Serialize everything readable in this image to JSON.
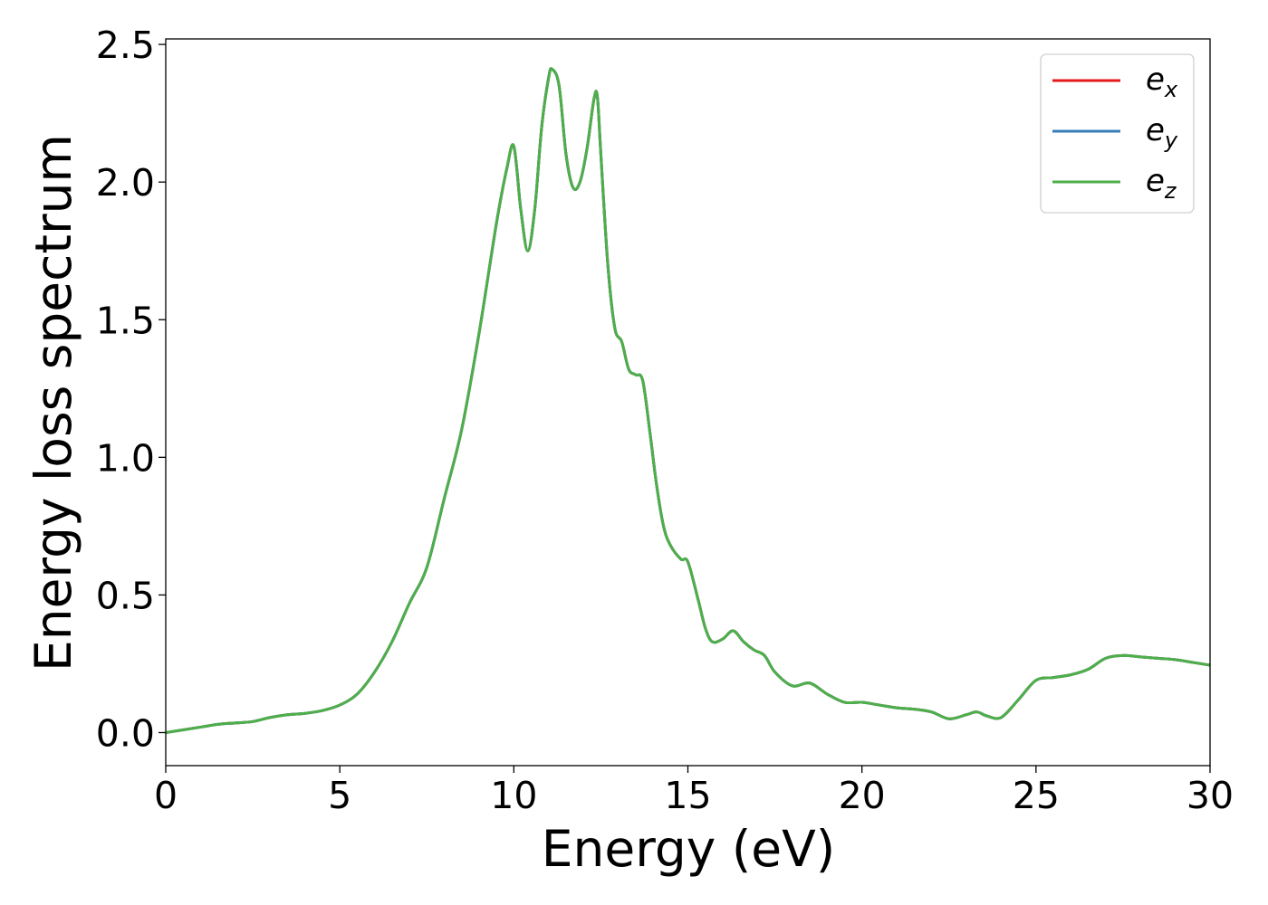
{
  "chart_data": {
    "type": "line",
    "xlabel": "Energy (eV)",
    "ylabel": "Energy loss spectrum",
    "xlim": [
      0,
      30
    ],
    "ylim": [
      -0.12,
      2.52
    ],
    "xticks": [
      0,
      5,
      10,
      15,
      20,
      25,
      30
    ],
    "xtick_labels": [
      "0",
      "5",
      "10",
      "15",
      "20",
      "25",
      "30"
    ],
    "yticks": [
      0.0,
      0.5,
      1.0,
      1.5,
      2.0,
      2.5
    ],
    "ytick_labels": [
      "0.0",
      "0.5",
      "1.0",
      "1.5",
      "2.0",
      "2.5"
    ],
    "grid": false,
    "legend_position": "top-right",
    "legend": [
      {
        "base": "e",
        "sub": "x",
        "color": "#e41a1c"
      },
      {
        "base": "e",
        "sub": "y",
        "color": "#377eb8"
      },
      {
        "base": "e",
        "sub": "z",
        "color": "#4daf4a"
      }
    ],
    "series": [
      {
        "name": "e_x",
        "color": "#e41a1c",
        "x": [
          0,
          1,
          1.5,
          2,
          2.5,
          3,
          3.5,
          4,
          4.5,
          5,
          5.5,
          6,
          6.5,
          7,
          7.5,
          8,
          8.5,
          9,
          9.5,
          9.8,
          10,
          10.2,
          10.4,
          10.6,
          10.8,
          11,
          11.1,
          11.3,
          11.5,
          11.7,
          11.9,
          12.1,
          12.3,
          12.4,
          12.5,
          12.7,
          12.9,
          13.1,
          13.3,
          13.5,
          13.7,
          13.9,
          14.1,
          14.3,
          14.5,
          14.8,
          15.0,
          15.3,
          15.5,
          15.7,
          16.0,
          16.3,
          16.6,
          16.9,
          17.2,
          17.5,
          18.0,
          18.5,
          19.0,
          19.5,
          20.0,
          20.5,
          21.0,
          21.5,
          22.0,
          22.5,
          23.0,
          23.3,
          23.6,
          24.0,
          24.5,
          25.0,
          25.5,
          26.0,
          26.5,
          27.0,
          27.5,
          28.0,
          28.5,
          29.0,
          29.5,
          30.0
        ],
        "y": [
          0.0,
          0.02,
          0.03,
          0.035,
          0.04,
          0.055,
          0.065,
          0.07,
          0.08,
          0.1,
          0.14,
          0.22,
          0.33,
          0.47,
          0.6,
          0.85,
          1.1,
          1.45,
          1.85,
          2.05,
          2.13,
          1.9,
          1.75,
          1.9,
          2.2,
          2.38,
          2.41,
          2.35,
          2.1,
          1.98,
          2.0,
          2.12,
          2.3,
          2.31,
          2.1,
          1.7,
          1.47,
          1.42,
          1.32,
          1.3,
          1.28,
          1.1,
          0.9,
          0.75,
          0.68,
          0.63,
          0.62,
          0.48,
          0.38,
          0.33,
          0.34,
          0.37,
          0.33,
          0.3,
          0.28,
          0.22,
          0.17,
          0.18,
          0.14,
          0.11,
          0.11,
          0.1,
          0.09,
          0.085,
          0.075,
          0.05,
          0.065,
          0.075,
          0.06,
          0.055,
          0.12,
          0.19,
          0.2,
          0.21,
          0.23,
          0.27,
          0.28,
          0.275,
          0.27,
          0.265,
          0.255,
          0.245
        ]
      },
      {
        "name": "e_y",
        "color": "#377eb8",
        "x": [
          0,
          1,
          1.5,
          2,
          2.5,
          3,
          3.5,
          4,
          4.5,
          5,
          5.5,
          6,
          6.5,
          7,
          7.5,
          8,
          8.5,
          9,
          9.5,
          9.8,
          10,
          10.2,
          10.4,
          10.6,
          10.8,
          11,
          11.1,
          11.3,
          11.5,
          11.7,
          11.9,
          12.1,
          12.3,
          12.4,
          12.5,
          12.7,
          12.9,
          13.1,
          13.3,
          13.5,
          13.7,
          13.9,
          14.1,
          14.3,
          14.5,
          14.8,
          15.0,
          15.3,
          15.5,
          15.7,
          16.0,
          16.3,
          16.6,
          16.9,
          17.2,
          17.5,
          18.0,
          18.5,
          19.0,
          19.5,
          20.0,
          20.5,
          21.0,
          21.5,
          22.0,
          22.5,
          23.0,
          23.3,
          23.6,
          24.0,
          24.5,
          25.0,
          25.5,
          26.0,
          26.5,
          27.0,
          27.5,
          28.0,
          28.5,
          29.0,
          29.5,
          30.0
        ],
        "y": [
          0.0,
          0.02,
          0.03,
          0.035,
          0.04,
          0.055,
          0.065,
          0.07,
          0.08,
          0.1,
          0.14,
          0.22,
          0.33,
          0.47,
          0.6,
          0.85,
          1.1,
          1.45,
          1.85,
          2.05,
          2.13,
          1.9,
          1.75,
          1.9,
          2.2,
          2.38,
          2.41,
          2.35,
          2.1,
          1.98,
          2.0,
          2.12,
          2.3,
          2.31,
          2.1,
          1.7,
          1.47,
          1.42,
          1.32,
          1.3,
          1.28,
          1.1,
          0.9,
          0.75,
          0.68,
          0.63,
          0.62,
          0.48,
          0.38,
          0.33,
          0.34,
          0.37,
          0.33,
          0.3,
          0.28,
          0.22,
          0.17,
          0.18,
          0.14,
          0.11,
          0.11,
          0.1,
          0.09,
          0.085,
          0.075,
          0.05,
          0.065,
          0.075,
          0.06,
          0.055,
          0.12,
          0.19,
          0.2,
          0.21,
          0.23,
          0.27,
          0.28,
          0.275,
          0.27,
          0.265,
          0.255,
          0.245
        ]
      },
      {
        "name": "e_z",
        "color": "#4daf4a",
        "x": [
          0,
          1,
          1.5,
          2,
          2.5,
          3,
          3.5,
          4,
          4.5,
          5,
          5.5,
          6,
          6.5,
          7,
          7.5,
          8,
          8.5,
          9,
          9.5,
          9.8,
          10,
          10.2,
          10.4,
          10.6,
          10.8,
          11,
          11.1,
          11.3,
          11.5,
          11.7,
          11.9,
          12.1,
          12.3,
          12.4,
          12.5,
          12.7,
          12.9,
          13.1,
          13.3,
          13.5,
          13.7,
          13.9,
          14.1,
          14.3,
          14.5,
          14.8,
          15.0,
          15.3,
          15.5,
          15.7,
          16.0,
          16.3,
          16.6,
          16.9,
          17.2,
          17.5,
          18.0,
          18.5,
          19.0,
          19.5,
          20.0,
          20.5,
          21.0,
          21.5,
          22.0,
          22.5,
          23.0,
          23.3,
          23.6,
          24.0,
          24.5,
          25.0,
          25.5,
          26.0,
          26.5,
          27.0,
          27.5,
          28.0,
          28.5,
          29.0,
          29.5,
          30.0
        ],
        "y": [
          0.0,
          0.02,
          0.03,
          0.035,
          0.04,
          0.055,
          0.065,
          0.07,
          0.08,
          0.1,
          0.14,
          0.22,
          0.33,
          0.47,
          0.6,
          0.85,
          1.1,
          1.45,
          1.85,
          2.05,
          2.13,
          1.9,
          1.75,
          1.9,
          2.2,
          2.38,
          2.41,
          2.35,
          2.1,
          1.98,
          2.0,
          2.12,
          2.3,
          2.31,
          2.1,
          1.7,
          1.47,
          1.42,
          1.32,
          1.3,
          1.28,
          1.1,
          0.9,
          0.75,
          0.68,
          0.63,
          0.62,
          0.48,
          0.38,
          0.33,
          0.34,
          0.37,
          0.33,
          0.3,
          0.28,
          0.22,
          0.17,
          0.18,
          0.14,
          0.11,
          0.11,
          0.1,
          0.09,
          0.085,
          0.075,
          0.05,
          0.065,
          0.075,
          0.06,
          0.055,
          0.12,
          0.19,
          0.2,
          0.21,
          0.23,
          0.27,
          0.28,
          0.275,
          0.27,
          0.265,
          0.255,
          0.245
        ]
      }
    ]
  }
}
